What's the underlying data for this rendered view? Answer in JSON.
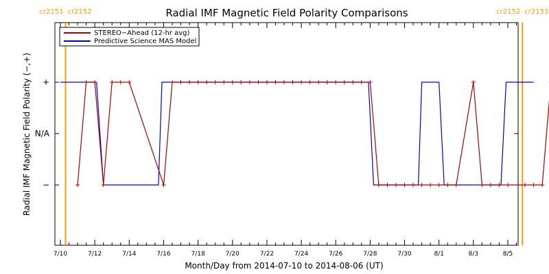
{
  "chart_data": {
    "type": "line",
    "title": "Radial IMF Magnetic Field Polarity Comparisons",
    "xlabel": "Month/Day from 2014-07-10 to 2014-08-06 (UT)",
    "ylabel": "Radial IMF Magnetic Field Polarity (−,+)",
    "x_range_days": [
      0,
      27.5
    ],
    "y_categories": [
      "−",
      "N/A",
      "+"
    ],
    "y_values_map": {
      "−": -1,
      "N/A": 0,
      "+": 1
    },
    "x_ticks": [
      {
        "day": 0,
        "label": "7/10"
      },
      {
        "day": 2,
        "label": "7/12"
      },
      {
        "day": 4,
        "label": "7/14"
      },
      {
        "day": 6,
        "label": "7/16"
      },
      {
        "day": 8,
        "label": "7/18"
      },
      {
        "day": 10,
        "label": "7/20"
      },
      {
        "day": 12,
        "label": "7/22"
      },
      {
        "day": 14,
        "label": "7/24"
      },
      {
        "day": 16,
        "label": "7/26"
      },
      {
        "day": 18,
        "label": "7/28"
      },
      {
        "day": 20,
        "label": "7/30"
      },
      {
        "day": 22,
        "label": "8/1"
      },
      {
        "day": 24,
        "label": "8/3"
      },
      {
        "day": 26,
        "label": "8/5"
      }
    ],
    "carrington": [
      {
        "day": 0.3,
        "left": "cr2151",
        "right": "cr2152",
        "side": "left"
      },
      {
        "day": 26.85,
        "left": "cr2152",
        "right": "cr2153",
        "side": "right"
      }
    ],
    "legend": {
      "placement": "top-left"
    },
    "series": [
      {
        "name": "STEREO−Ahead (12-hr avg)",
        "color": "#aa0000",
        "markers": true,
        "points": [
          [
            1.0,
            -1
          ],
          [
            1.5,
            1
          ],
          [
            2.0,
            1
          ],
          [
            2.5,
            -1
          ],
          [
            3.0,
            1
          ],
          [
            3.5,
            1
          ],
          [
            4.0,
            1
          ],
          [
            6.0,
            -1
          ],
          [
            6.5,
            1
          ],
          [
            7.0,
            1
          ],
          [
            7.5,
            1
          ],
          [
            8.0,
            1
          ],
          [
            8.5,
            1
          ],
          [
            9.0,
            1
          ],
          [
            9.5,
            1
          ],
          [
            10.0,
            1
          ],
          [
            10.5,
            1
          ],
          [
            11.0,
            1
          ],
          [
            11.5,
            1
          ],
          [
            12.0,
            1
          ],
          [
            12.5,
            1
          ],
          [
            13.0,
            1
          ],
          [
            13.5,
            1
          ],
          [
            14.0,
            1
          ],
          [
            14.5,
            1
          ],
          [
            15.0,
            1
          ],
          [
            15.5,
            1
          ],
          [
            16.0,
            1
          ],
          [
            16.5,
            1
          ],
          [
            17.0,
            1
          ],
          [
            17.5,
            1
          ],
          [
            18.0,
            1
          ],
          [
            18.5,
            -1
          ],
          [
            19.0,
            -1
          ],
          [
            19.5,
            -1
          ],
          [
            20.0,
            -1
          ],
          [
            20.5,
            -1
          ],
          [
            21.0,
            -1
          ],
          [
            21.5,
            -1
          ],
          [
            22.0,
            -1
          ],
          [
            22.5,
            -1
          ],
          [
            23.0,
            -1
          ],
          [
            24.0,
            1
          ],
          [
            24.5,
            -1
          ],
          [
            25.0,
            -1
          ],
          [
            25.5,
            -1
          ],
          [
            26.0,
            -1
          ],
          [
            27.0,
            -1
          ],
          [
            27.5,
            -1
          ],
          [
            28.0,
            -1
          ],
          [
            28.5,
            1
          ],
          [
            29.0,
            1
          ],
          [
            29.5,
            1
          ],
          [
            30.0,
            1
          ]
        ]
      },
      {
        "name": "Predictive Science MAS Model",
        "color": "#0000cc",
        "markers": false,
        "points": [
          [
            0.0,
            1
          ],
          [
            2.1,
            1
          ],
          [
            2.5,
            -1
          ],
          [
            5.7,
            -1
          ],
          [
            5.9,
            1
          ],
          [
            17.9,
            1
          ],
          [
            18.2,
            -1
          ],
          [
            20.8,
            -1
          ],
          [
            21.0,
            1
          ],
          [
            22.0,
            1
          ],
          [
            22.3,
            -1
          ],
          [
            25.6,
            -1
          ],
          [
            25.9,
            1
          ],
          [
            27.5,
            1
          ]
        ]
      }
    ]
  }
}
